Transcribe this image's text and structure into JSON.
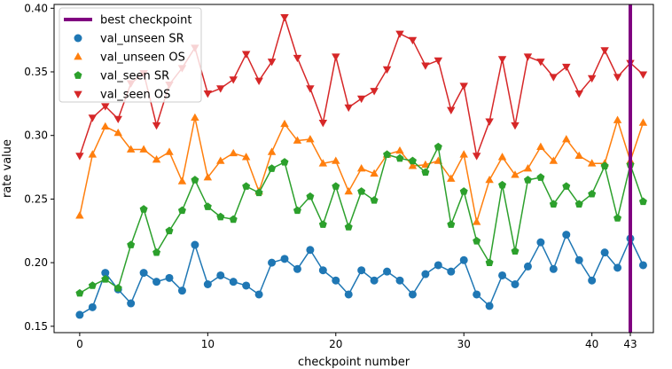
{
  "chart_data": {
    "type": "line",
    "xlabel": "checkpoint number",
    "ylabel": "rate value",
    "xlim": [
      -2,
      44.8
    ],
    "ylim": [
      0.145,
      0.403
    ],
    "x_ticks": [
      0,
      10,
      20,
      30,
      40,
      43
    ],
    "y_ticks": [
      0.15,
      0.2,
      0.25,
      0.3,
      0.35,
      0.4
    ],
    "y_tick_labels": [
      "0.15",
      "0.20",
      "0.25",
      "0.30",
      "0.35",
      "0.40"
    ],
    "grid": false,
    "legend_position": "top-left",
    "best_checkpoint": {
      "name": "best checkpoint",
      "x": 43,
      "color": "#800080"
    },
    "x": [
      0,
      1,
      2,
      3,
      4,
      5,
      6,
      7,
      8,
      9,
      10,
      11,
      12,
      13,
      14,
      15,
      16,
      17,
      18,
      19,
      20,
      21,
      22,
      23,
      24,
      25,
      26,
      27,
      28,
      29,
      30,
      31,
      32,
      33,
      34,
      35,
      36,
      37,
      38,
      39,
      40,
      41,
      42,
      43,
      44
    ],
    "series": [
      {
        "name": "val_unseen SR",
        "color": "#1f77b4",
        "marker": "circle",
        "values": [
          0.159,
          0.165,
          0.192,
          0.179,
          0.168,
          0.192,
          0.185,
          0.188,
          0.178,
          0.214,
          0.183,
          0.19,
          0.185,
          0.182,
          0.175,
          0.2,
          0.203,
          0.195,
          0.21,
          0.194,
          0.186,
          0.175,
          0.194,
          0.186,
          0.193,
          0.186,
          0.175,
          0.191,
          0.198,
          0.193,
          0.202,
          0.175,
          0.166,
          0.19,
          0.183,
          0.197,
          0.216,
          0.195,
          0.222,
          0.202,
          0.186,
          0.208,
          0.196,
          0.219,
          0.198
        ]
      },
      {
        "name": "val_unseen OS",
        "color": "#ff7f0e",
        "marker": "triangle-up",
        "values": [
          0.237,
          0.285,
          0.307,
          0.302,
          0.289,
          0.289,
          0.281,
          0.287,
          0.264,
          0.314,
          0.267,
          0.28,
          0.286,
          0.283,
          0.256,
          0.287,
          0.309,
          0.296,
          0.297,
          0.278,
          0.28,
          0.256,
          0.274,
          0.27,
          0.285,
          0.288,
          0.276,
          0.277,
          0.28,
          0.266,
          0.285,
          0.232,
          0.265,
          0.283,
          0.269,
          0.274,
          0.291,
          0.28,
          0.297,
          0.284,
          0.278,
          0.278,
          0.312,
          0.28,
          0.31
        ]
      },
      {
        "name": "val_seen SR",
        "color": "#2ca02c",
        "marker": "pentagon",
        "values": [
          0.176,
          0.182,
          0.187,
          0.18,
          0.214,
          0.242,
          0.208,
          0.225,
          0.241,
          0.265,
          0.244,
          0.236,
          0.234,
          0.26,
          0.255,
          0.274,
          0.279,
          0.241,
          0.252,
          0.23,
          0.26,
          0.228,
          0.256,
          0.249,
          0.285,
          0.282,
          0.28,
          0.271,
          0.291,
          0.23,
          0.256,
          0.217,
          0.2,
          0.261,
          0.209,
          0.265,
          0.267,
          0.246,
          0.26,
          0.246,
          0.254,
          0.276,
          0.235,
          0.277,
          0.248
        ]
      },
      {
        "name": "val_seen OS",
        "color": "#d62728",
        "marker": "triangle-down",
        "values": [
          0.284,
          0.314,
          0.323,
          0.313,
          0.341,
          0.349,
          0.308,
          0.34,
          0.353,
          0.369,
          0.333,
          0.337,
          0.344,
          0.364,
          0.343,
          0.358,
          0.393,
          0.361,
          0.337,
          0.31,
          0.362,
          0.322,
          0.329,
          0.335,
          0.352,
          0.38,
          0.375,
          0.355,
          0.359,
          0.32,
          0.339,
          0.284,
          0.311,
          0.36,
          0.308,
          0.362,
          0.358,
          0.346,
          0.354,
          0.333,
          0.345,
          0.367,
          0.346,
          0.357,
          0.348
        ]
      }
    ]
  }
}
